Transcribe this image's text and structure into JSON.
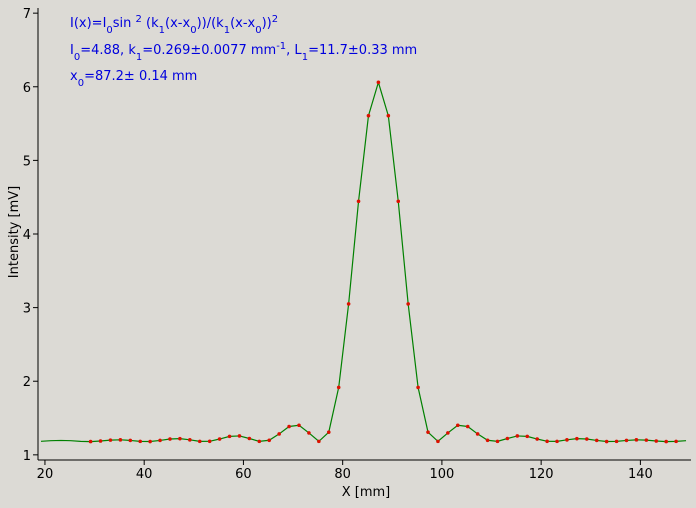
{
  "chart_data": {
    "type": "scatter",
    "xlabel": "X [mm]",
    "ylabel": "Intensity [mV]",
    "xlim": [
      18.6,
      150.2
    ],
    "ylim": [
      0.93,
      7.07
    ],
    "xticks": [
      20,
      40,
      60,
      80,
      100,
      120,
      140
    ],
    "yticks": [
      1,
      2,
      3,
      4,
      5,
      6,
      7
    ],
    "annotations": [
      [
        {
          "t": "I(x)=I"
        },
        {
          "t": "0",
          "s": "sub"
        },
        {
          "t": "sin "
        },
        {
          "t": "2",
          "s": "sup"
        },
        {
          "t": " (k"
        },
        {
          "t": "1",
          "s": "sub"
        },
        {
          "t": "(x-x"
        },
        {
          "t": "0",
          "s": "sub"
        },
        {
          "t": "))/(k"
        },
        {
          "t": "1",
          "s": "sub"
        },
        {
          "t": "(x-x"
        },
        {
          "t": "0",
          "s": "sub"
        },
        {
          "t": "))"
        },
        {
          "t": "2",
          "s": "sup"
        }
      ],
      [
        {
          "t": "I"
        },
        {
          "t": "0",
          "s": "sub"
        },
        {
          "t": "=4.88,  k"
        },
        {
          "t": "1",
          "s": "sub"
        },
        {
          "t": "=0.269±0.0077 mm"
        },
        {
          "t": "-1",
          "s": "sup"
        },
        {
          "t": ",   L"
        },
        {
          "t": "1",
          "s": "sub"
        },
        {
          "t": "=11.7±0.33 mm"
        }
      ],
      [
        {
          "t": "x"
        },
        {
          "t": "0",
          "s": "sub"
        },
        {
          "t": "=87.2±   0.14 mm"
        }
      ]
    ],
    "series": [
      {
        "style": "line",
        "color": "#008000",
        "x": [
          19.2,
          21.2,
          23.2,
          25.2,
          27.2,
          29.2,
          31.2,
          33.2,
          35.2,
          37.2,
          39.2,
          41.2,
          43.2,
          45.2,
          47.2,
          49.2,
          51.2,
          53.2,
          55.2,
          57.2,
          59.2,
          61.2,
          63.2,
          65.2,
          67.2,
          69.2,
          71.2,
          73.2,
          75.2,
          77.2,
          79.2,
          81.2,
          83.2,
          85.2,
          87.2,
          89.2,
          91.2,
          93.2,
          95.2,
          97.2,
          99.2,
          101.2,
          103.2,
          105.2,
          107.2,
          109.2,
          111.2,
          113.2,
          115.2,
          117.2,
          119.2,
          121.2,
          123.2,
          125.2,
          127.2,
          129.2,
          131.2,
          133.2,
          135.2,
          137.2,
          139.2,
          141.2,
          143.2,
          145.2,
          147.2,
          149.2
        ],
        "values": [
          1.184,
          1.192,
          1.196,
          1.192,
          1.183,
          1.18,
          1.188,
          1.2,
          1.204,
          1.196,
          1.183,
          1.181,
          1.196,
          1.215,
          1.22,
          1.204,
          1.183,
          1.184,
          1.215,
          1.251,
          1.257,
          1.222,
          1.183,
          1.198,
          1.284,
          1.385,
          1.402,
          1.298,
          1.183,
          1.308,
          1.916,
          3.05,
          4.445,
          5.607,
          6.06,
          5.607,
          4.445,
          3.05,
          1.916,
          1.308,
          1.183,
          1.298,
          1.402,
          1.385,
          1.284,
          1.198,
          1.183,
          1.222,
          1.257,
          1.251,
          1.215,
          1.184,
          1.183,
          1.204,
          1.22,
          1.215,
          1.196,
          1.181,
          1.183,
          1.196,
          1.204,
          1.2,
          1.188,
          1.18,
          1.183,
          1.192
        ]
      },
      {
        "style": "points",
        "color": "#dd1100",
        "x": [
          29.2,
          31.2,
          33.2,
          35.2,
          37.2,
          39.2,
          41.2,
          43.2,
          45.2,
          47.2,
          49.2,
          51.2,
          53.2,
          55.2,
          57.2,
          59.2,
          61.2,
          63.2,
          65.2,
          67.2,
          69.2,
          71.2,
          73.2,
          75.2,
          77.2,
          79.2,
          81.2,
          83.2,
          85.2,
          87.2,
          89.2,
          91.2,
          93.2,
          95.2,
          97.2,
          99.2,
          101.2,
          103.2,
          105.2,
          107.2,
          109.2,
          111.2,
          113.2,
          115.2,
          117.2,
          119.2,
          121.2,
          123.2,
          125.2,
          127.2,
          129.2,
          131.2,
          133.2,
          135.2,
          137.2,
          139.2,
          141.2,
          143.2,
          145.2,
          147.2
        ],
        "values": [
          1.18,
          1.188,
          1.2,
          1.204,
          1.196,
          1.183,
          1.181,
          1.196,
          1.215,
          1.22,
          1.204,
          1.183,
          1.184,
          1.215,
          1.251,
          1.257,
          1.222,
          1.183,
          1.198,
          1.284,
          1.385,
          1.402,
          1.298,
          1.183,
          1.308,
          1.916,
          3.05,
          4.445,
          5.607,
          6.06,
          5.607,
          4.445,
          3.05,
          1.916,
          1.308,
          1.183,
          1.298,
          1.402,
          1.385,
          1.284,
          1.198,
          1.183,
          1.222,
          1.257,
          1.251,
          1.215,
          1.184,
          1.183,
          1.204,
          1.22,
          1.215,
          1.196,
          1.181,
          1.183,
          1.196,
          1.204,
          1.2,
          1.188,
          1.18,
          1.183
        ]
      }
    ]
  }
}
